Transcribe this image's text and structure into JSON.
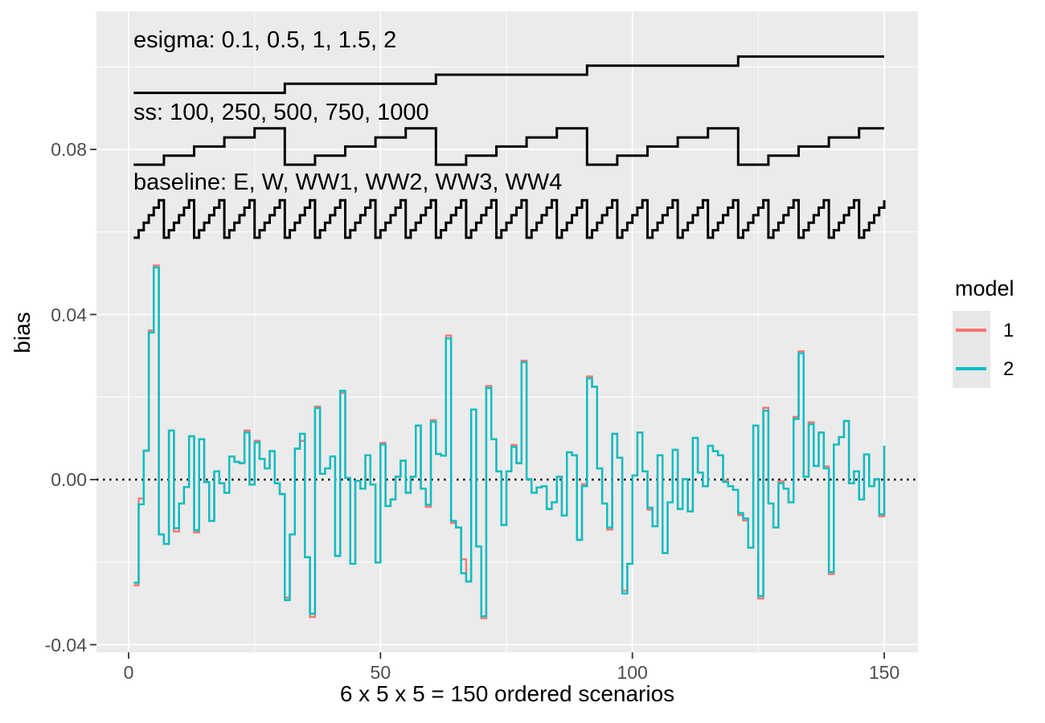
{
  "figure": {
    "x_axis": {
      "title": "6 x 5 x 5 = 150 ordered scenarios",
      "tick_labels": [
        "0",
        "50",
        "100",
        "150"
      ],
      "tick_values": [
        0,
        50,
        100,
        150
      ],
      "minor_values": [
        25,
        75,
        125
      ]
    },
    "y_axis": {
      "title": "bias",
      "tick_labels": [
        "0.08",
        "0.04",
        "0.00",
        "-0.04"
      ],
      "tick_values": [
        0.08,
        0.04,
        0.0,
        -0.04
      ],
      "minor_values": [
        0.1,
        0.06,
        0.02,
        -0.02
      ]
    },
    "legend": {
      "title": "model",
      "items": [
        {
          "label": "1",
          "color": "#F8766D"
        },
        {
          "label": "2",
          "color": "#00BFC4"
        }
      ]
    },
    "colors": {
      "panel_background": "#EBEBEB",
      "grid": "#FFFFFF",
      "axis_text": "#4D4D4D",
      "annotation_line": "#000000",
      "zero_line": "#000000",
      "model1": "#F8766D",
      "model2": "#00BFC4"
    }
  },
  "chart_data": {
    "type": "step",
    "title": "",
    "xlabel": "6 x 5 x 5 = 150 ordered scenarios",
    "ylabel": "bias",
    "x_start": 1,
    "x_end": 150,
    "xlim": [
      0,
      157
    ],
    "ylim": [
      -0.045,
      0.114
    ],
    "x_ticks": [
      0,
      50,
      100,
      150
    ],
    "y_ticks": [
      0.08,
      0.04,
      0.0,
      -0.04
    ],
    "grid": "on",
    "legend_position": "right",
    "zero_reference_line": 0.0,
    "factor_rulers": [
      {
        "name": "esigma",
        "label": "esigma: 0.1, 0.5, 1, 1.5, 2",
        "levels": [
          "0.1",
          "0.5",
          "1",
          "1.5",
          "2"
        ],
        "scenarios_per_level": 30,
        "cycle_length": 150,
        "display_value_min": 0.0937,
        "display_value_max": 0.1025
      },
      {
        "name": "ss",
        "label": "ss: 100, 250, 500, 750, 1000",
        "levels": [
          "100",
          "250",
          "500",
          "750",
          "1000"
        ],
        "scenarios_per_level": 6,
        "cycle_length": 30,
        "display_value_min": 0.0763,
        "display_value_max": 0.0851
      },
      {
        "name": "baseline",
        "label": "baseline: E, W, WW1, WW2, WW3, WW4",
        "levels": [
          "E",
          "W",
          "WW1",
          "WW2",
          "WW3",
          "WW4"
        ],
        "scenarios_per_level": 1,
        "cycle_length": 6,
        "display_value_min": 0.0586,
        "display_value_max": 0.0677
      }
    ],
    "series": [
      {
        "name": "1",
        "color": "#F8766D",
        "values": [
          -0.0256,
          -0.0046,
          0.007,
          0.0361,
          0.0519,
          -0.0133,
          -0.0156,
          0.0119,
          -0.0126,
          -0.0058,
          -0.0018,
          0.0105,
          -0.0128,
          0.0098,
          -0.0006,
          -0.01,
          0.002,
          -0.0009,
          -0.0032,
          0.0056,
          0.0043,
          0.004,
          0.0119,
          -0.0012,
          0.0094,
          0.005,
          0.0027,
          0.0069,
          -0.0009,
          -0.0035,
          -0.0286,
          -0.0133,
          0.0075,
          0.0094,
          -0.0188,
          -0.0333,
          0.0177,
          0.0014,
          0.0027,
          0.0056,
          -0.0185,
          0.021,
          0.0004,
          -0.0204,
          -0.0003,
          -0.0022,
          0.0059,
          -0.0012,
          -0.0201,
          0.0089,
          -0.0064,
          -0.0048,
          0.0007,
          0.0046,
          -0.0032,
          0.0007,
          0.0131,
          -0.0022,
          -0.0066,
          0.0144,
          0.0062,
          0.0058,
          0.0349,
          -0.0105,
          -0.0116,
          -0.0193,
          -0.0247,
          0.017,
          -0.0162,
          -0.0336,
          0.0227,
          0.0098,
          0.002,
          -0.011,
          0.002,
          0.0084,
          0.004,
          0.0288,
          0.0001,
          -0.0032,
          -0.0019,
          -0.0016,
          -0.0071,
          -0.0055,
          0.0007,
          -0.0087,
          0.0066,
          0.0059,
          -0.0146,
          -0.0011,
          0.025,
          0.0225,
          0.0027,
          -0.0058,
          -0.0121,
          0.0111,
          0.0053,
          -0.0269,
          -0.0204,
          0.001,
          0.0114,
          0.002,
          -0.0073,
          -0.0113,
          0.0059,
          -0.0178,
          -0.0055,
          0.0072,
          -0.0071,
          0.0001,
          -0.0077,
          0.0101,
          0.0017,
          -0.0016,
          0.0082,
          0.0069,
          0.0059,
          -0.0002,
          -0.0016,
          -0.0025,
          -0.0086,
          -0.0099,
          -0.0165,
          0.0131,
          -0.0288,
          0.0174,
          -0.0058,
          -0.0116,
          -0.0004,
          -0.0022,
          -0.0055,
          0.0152,
          0.0311,
          0.0007,
          0.0139,
          0.0033,
          0.0114,
          0.0032,
          -0.0229,
          0.0085,
          0.0103,
          0.0142,
          -0.0009,
          0.002,
          -0.0048,
          0.0061,
          -0.0016,
          0.0001,
          -0.0089,
          0.0082
        ]
      },
      {
        "name": "2",
        "color": "#00BFC4",
        "values": [
          -0.025,
          -0.006,
          0.007,
          0.0356,
          0.0514,
          -0.0133,
          -0.0156,
          0.0119,
          -0.0118,
          -0.0058,
          -0.0018,
          0.0105,
          -0.0123,
          0.0098,
          -0.0006,
          -0.01,
          0.002,
          -0.0009,
          -0.0032,
          0.0056,
          0.0043,
          0.004,
          0.0114,
          -0.0012,
          0.009,
          0.005,
          0.0027,
          0.0069,
          -0.0009,
          -0.0035,
          -0.0292,
          -0.0133,
          0.0075,
          0.0111,
          -0.0188,
          -0.0325,
          0.0173,
          0.0014,
          0.0027,
          0.0056,
          -0.0185,
          0.0215,
          0.0004,
          -0.0204,
          -0.0003,
          -0.0022,
          0.0059,
          -0.0012,
          -0.0201,
          0.0085,
          -0.0064,
          -0.0048,
          0.0007,
          0.0046,
          -0.0032,
          0.0007,
          0.0131,
          -0.0022,
          -0.0061,
          0.014,
          0.0062,
          0.0058,
          0.0342,
          -0.01,
          -0.0116,
          -0.0227,
          -0.0247,
          0.017,
          -0.0162,
          -0.0331,
          0.0222,
          0.0098,
          0.002,
          -0.011,
          0.002,
          0.0079,
          0.004,
          0.0284,
          0.0001,
          -0.0032,
          -0.0019,
          -0.0016,
          -0.0071,
          -0.0055,
          0.0007,
          -0.0087,
          0.0066,
          0.0059,
          -0.0146,
          -0.0016,
          0.0245,
          0.0225,
          0.0027,
          -0.0058,
          -0.0116,
          0.0111,
          0.0053,
          -0.0276,
          -0.0204,
          0.001,
          0.0114,
          0.002,
          -0.0068,
          -0.0113,
          0.0059,
          -0.0178,
          -0.0055,
          0.0072,
          -0.0071,
          0.0001,
          -0.0077,
          0.0101,
          0.0017,
          -0.0016,
          0.0082,
          0.0069,
          0.0059,
          -0.0006,
          -0.0016,
          -0.0025,
          -0.0081,
          -0.0094,
          -0.0165,
          0.0131,
          -0.0282,
          0.0167,
          -0.0058,
          -0.0116,
          -0.0009,
          -0.0022,
          -0.0055,
          0.0147,
          0.0306,
          0.0007,
          0.0134,
          0.0033,
          0.0114,
          0.0027,
          -0.0224,
          0.0085,
          0.0103,
          0.0142,
          -0.0009,
          0.002,
          -0.0048,
          0.0061,
          -0.0016,
          0.0001,
          -0.0084,
          0.0082
        ]
      }
    ]
  }
}
